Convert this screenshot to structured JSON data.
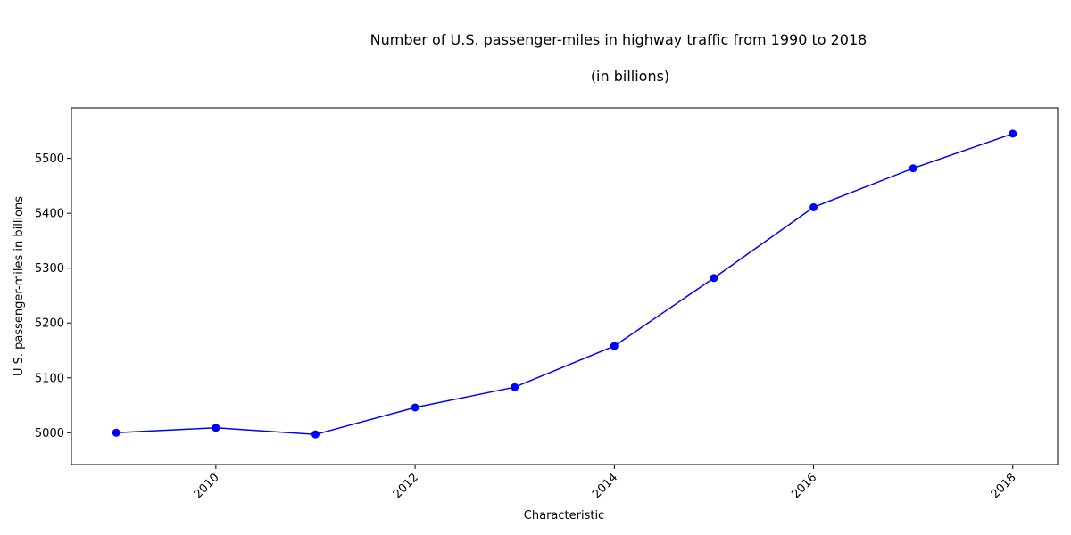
{
  "chart_data": {
    "type": "line",
    "title": "Number of U.S. passenger-miles in highway traffic from 1990 to 2018",
    "subtitle": "(in billions)",
    "xlabel": "Characteristic",
    "ylabel": "U.S. passenger-miles in billions",
    "x": [
      2009,
      2010,
      2011,
      2012,
      2013,
      2014,
      2015,
      2016,
      2017,
      2018
    ],
    "series": [
      {
        "values": [
          5000,
          5009,
          4997,
          5046,
          5083,
          5158,
          5282,
          5411,
          5482,
          5545
        ]
      }
    ],
    "xticks": [
      2010,
      2012,
      2014,
      2016,
      2018
    ],
    "yticks": [
      5000,
      5100,
      5200,
      5300,
      5400,
      5500
    ],
    "xlim": [
      2008.55,
      2018.45
    ],
    "ylim": [
      4942,
      5592
    ],
    "grid": false,
    "line_color": "#0000ff",
    "marker_color": "#0000ff"
  }
}
